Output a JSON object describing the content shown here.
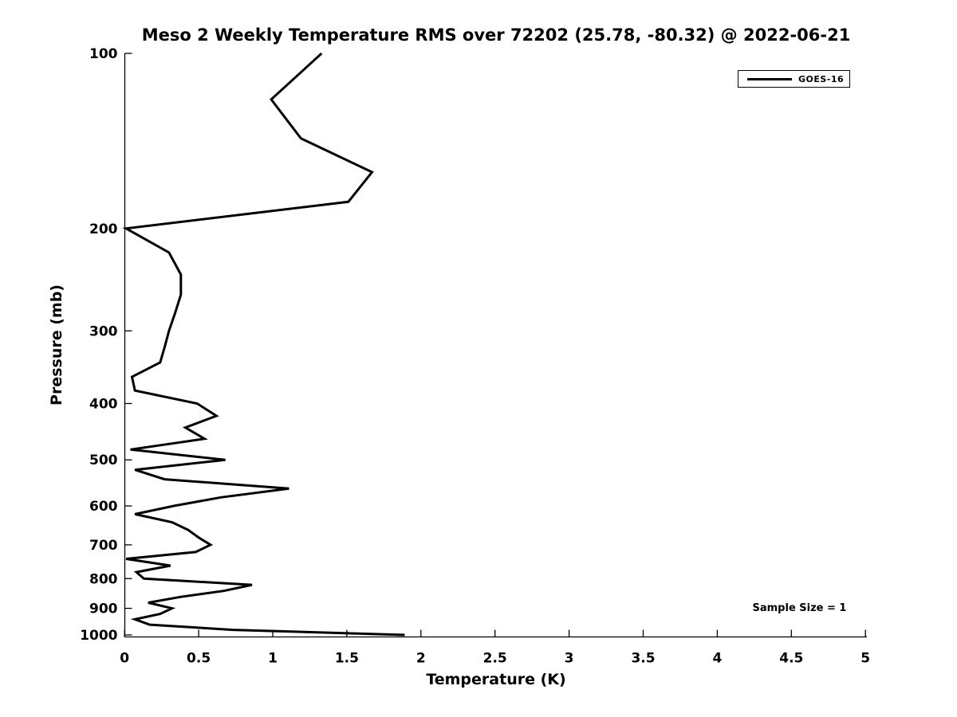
{
  "title": "Meso 2 Weekly Temperature RMS over 72202 (25.78, -80.32) @ 2022-06-21",
  "axes": {
    "xlabel": "Temperature (K)",
    "ylabel": "Pressure (mb)"
  },
  "legend": {
    "series_label": "GOES-16"
  },
  "annotation": {
    "sample_size_text": "Sample Size = 1"
  },
  "colors": {
    "line": "#000000",
    "axis": "#000000",
    "background": "#ffffff"
  },
  "chart_data": {
    "type": "line",
    "title": "Meso 2 Weekly Temperature RMS over 72202 (25.78, -80.32) @ 2022-06-21",
    "xlabel": "Temperature (K)",
    "ylabel": "Pressure (mb)",
    "xlim": [
      0,
      5
    ],
    "ylim": [
      100,
      1000
    ],
    "yscale": "log",
    "y_inverted": true,
    "grid": false,
    "legend_position": "upper right",
    "x_ticks": [
      0,
      0.5,
      1,
      1.5,
      2,
      2.5,
      3,
      3.5,
      4,
      4.5,
      5
    ],
    "y_ticks": [
      100,
      200,
      300,
      400,
      500,
      600,
      700,
      800,
      900,
      1000
    ],
    "annotation": "Sample Size = 1",
    "series": [
      {
        "name": "GOES-16",
        "color": "#000000",
        "pressure_mb": [
          100,
          120,
          140,
          160,
          180,
          200,
          220,
          240,
          260,
          280,
          300,
          320,
          340,
          360,
          380,
          400,
          420,
          440,
          460,
          480,
          500,
          520,
          540,
          560,
          580,
          600,
          620,
          640,
          660,
          680,
          700,
          720,
          740,
          760,
          780,
          800,
          820,
          840,
          860,
          880,
          900,
          920,
          940,
          960,
          980,
          1000
        ],
        "rms_k": [
          1.33,
          0.99,
          1.19,
          1.67,
          1.51,
          0.01,
          0.3,
          0.38,
          0.38,
          0.34,
          0.3,
          0.27,
          0.24,
          0.05,
          0.07,
          0.49,
          0.62,
          0.41,
          0.54,
          0.04,
          0.68,
          0.07,
          0.27,
          1.11,
          0.65,
          0.33,
          0.07,
          0.32,
          0.43,
          0.5,
          0.58,
          0.48,
          0.01,
          0.31,
          0.08,
          0.13,
          0.86,
          0.67,
          0.38,
          0.16,
          0.32,
          0.24,
          0.07,
          0.17,
          0.73,
          1.89
        ]
      }
    ]
  }
}
